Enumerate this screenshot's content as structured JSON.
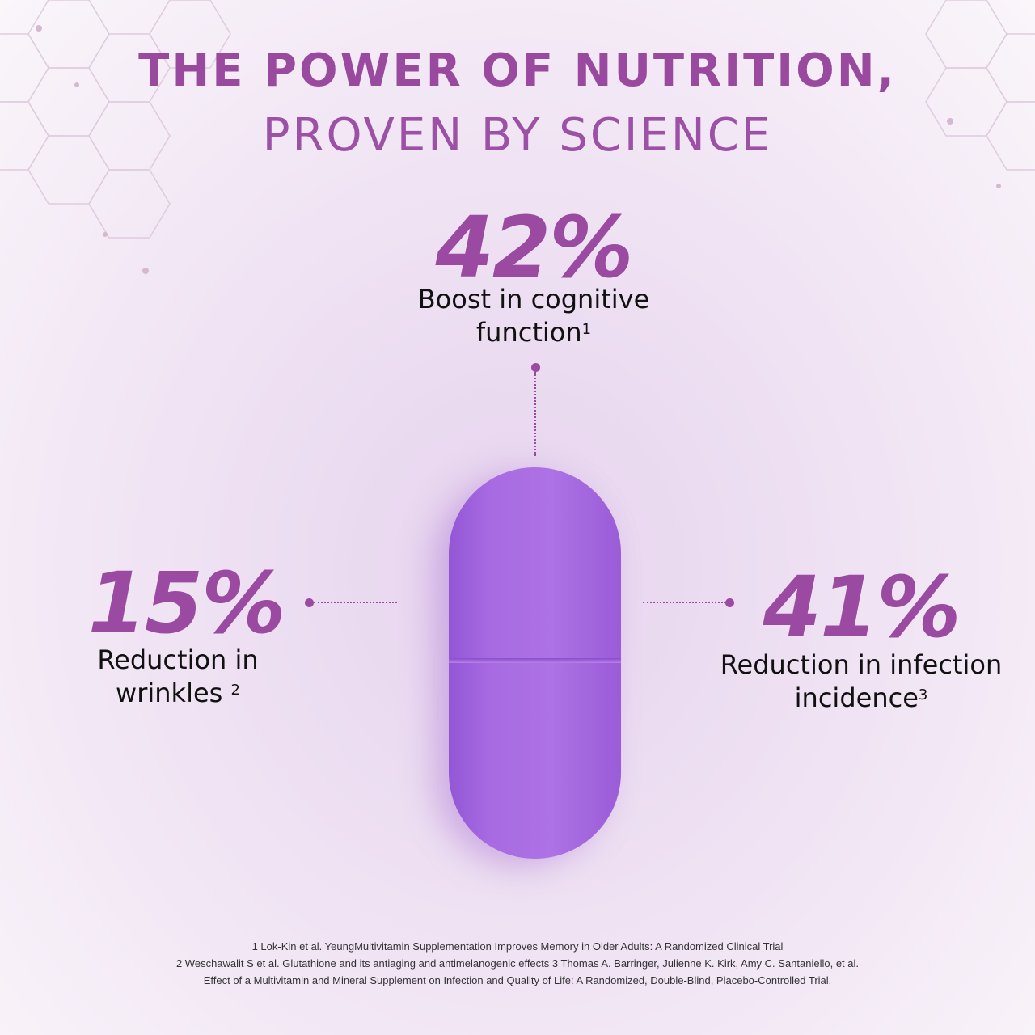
{
  "header": {
    "line1": "THE POWER OF NUTRITION,",
    "line2": "PROVEN BY SCIENCE"
  },
  "stats": [
    {
      "value": "42%",
      "caption_line1": "Boost in cognitive",
      "caption_line2": "function",
      "ref": "1"
    },
    {
      "value": "15%",
      "caption_line1": "Reduction in",
      "caption_line2": "wrinkles",
      "ref": "2"
    },
    {
      "value": "41%",
      "caption_line1": "Reduction in infection",
      "caption_line2": "incidence",
      "ref": "3"
    }
  ],
  "footnotes": [
    "1 Lok-Kin et al. YeungMultivitamin Supplementation Improves Memory in Older Adults: A Randomized Clinical Trial",
    "2 Weschawalit S et al. Glutathione and its antiaging and antimelanogenic effects 3 Thomas A. Barringer, Julienne K. Kirk, Amy C. Santaniello, et al.",
    "Effect of a Multivitamin and Mineral Supplement on Infection and Quality of Life: A Randomized, Double-Blind, Placebo-Controlled Trial."
  ],
  "colors": {
    "accent": "#9a4aa0",
    "pill": "#a86be2",
    "background": "#efe2f3"
  },
  "icons": [
    "hexagon-molecule-pattern",
    "pill-image"
  ]
}
